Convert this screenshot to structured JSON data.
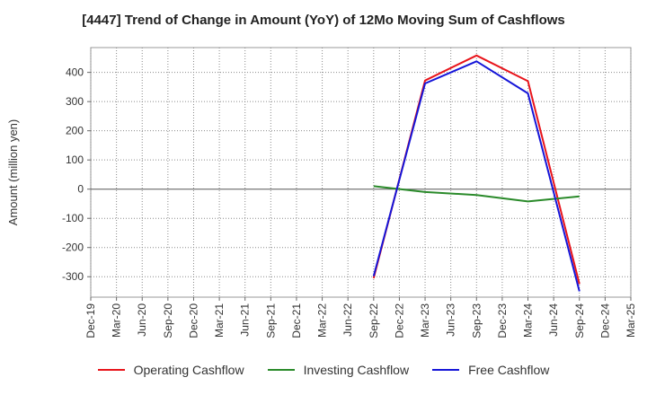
{
  "chart_data": {
    "type": "line",
    "title": "[4447]  Trend of Change in Amount (YoY) of 12Mo Moving Sum of Cashflows",
    "xlabel": "",
    "ylabel": "Amount (million yen)",
    "ylim": [
      -370,
      485
    ],
    "yticks": [
      400,
      300,
      200,
      100,
      0,
      -100,
      -200,
      -300
    ],
    "categories": [
      "Dec-19",
      "Mar-20",
      "Jun-20",
      "Sep-20",
      "Dec-20",
      "Mar-21",
      "Jun-21",
      "Sep-21",
      "Dec-21",
      "Mar-22",
      "Jun-22",
      "Sep-22",
      "Dec-22",
      "Mar-23",
      "Jun-23",
      "Sep-23",
      "Dec-23",
      "Mar-24",
      "Jun-24",
      "Sep-24",
      "Dec-24",
      "Mar-25"
    ],
    "series": [
      {
        "name": "Operating Cashflow",
        "color": "#e8141b",
        "values": [
          null,
          null,
          null,
          null,
          null,
          null,
          null,
          null,
          null,
          null,
          null,
          -305,
          null,
          372,
          null,
          458,
          null,
          370,
          null,
          -325,
          null,
          null
        ]
      },
      {
        "name": "Investing Cashflow",
        "color": "#2a8a2a",
        "values": [
          null,
          null,
          null,
          null,
          null,
          null,
          null,
          null,
          null,
          null,
          null,
          10,
          null,
          -10,
          null,
          -20,
          null,
          -42,
          null,
          -25,
          null,
          null
        ]
      },
      {
        "name": "Free Cashflow",
        "color": "#1515d8",
        "values": [
          null,
          null,
          null,
          null,
          null,
          null,
          null,
          null,
          null,
          null,
          null,
          -298,
          null,
          362,
          null,
          438,
          null,
          328,
          null,
          -350,
          null,
          null
        ]
      }
    ],
    "legend_position": "bottom",
    "grid": true
  }
}
